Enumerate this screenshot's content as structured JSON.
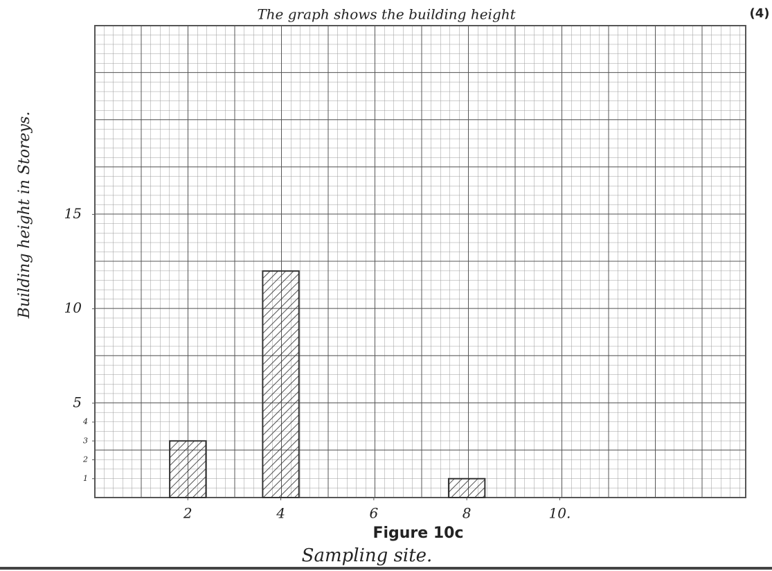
{
  "chart_data": {
    "type": "bar",
    "title": "The graph shows the building height",
    "marks": "(4)",
    "caption": "Figure 10c",
    "x_label": "Sampling site.",
    "y_label": "Building height in Storeys.",
    "x": [
      2,
      4,
      8
    ],
    "values": [
      3,
      12,
      1
    ],
    "color": "#333333",
    "xlim": [
      0,
      14
    ],
    "ylim": [
      0,
      25
    ],
    "xticks": [
      2,
      4,
      6,
      8,
      {
        "value": 10,
        "label": "10."
      }
    ],
    "yticks": [
      1,
      2,
      3,
      4,
      5,
      10,
      15
    ]
  }
}
